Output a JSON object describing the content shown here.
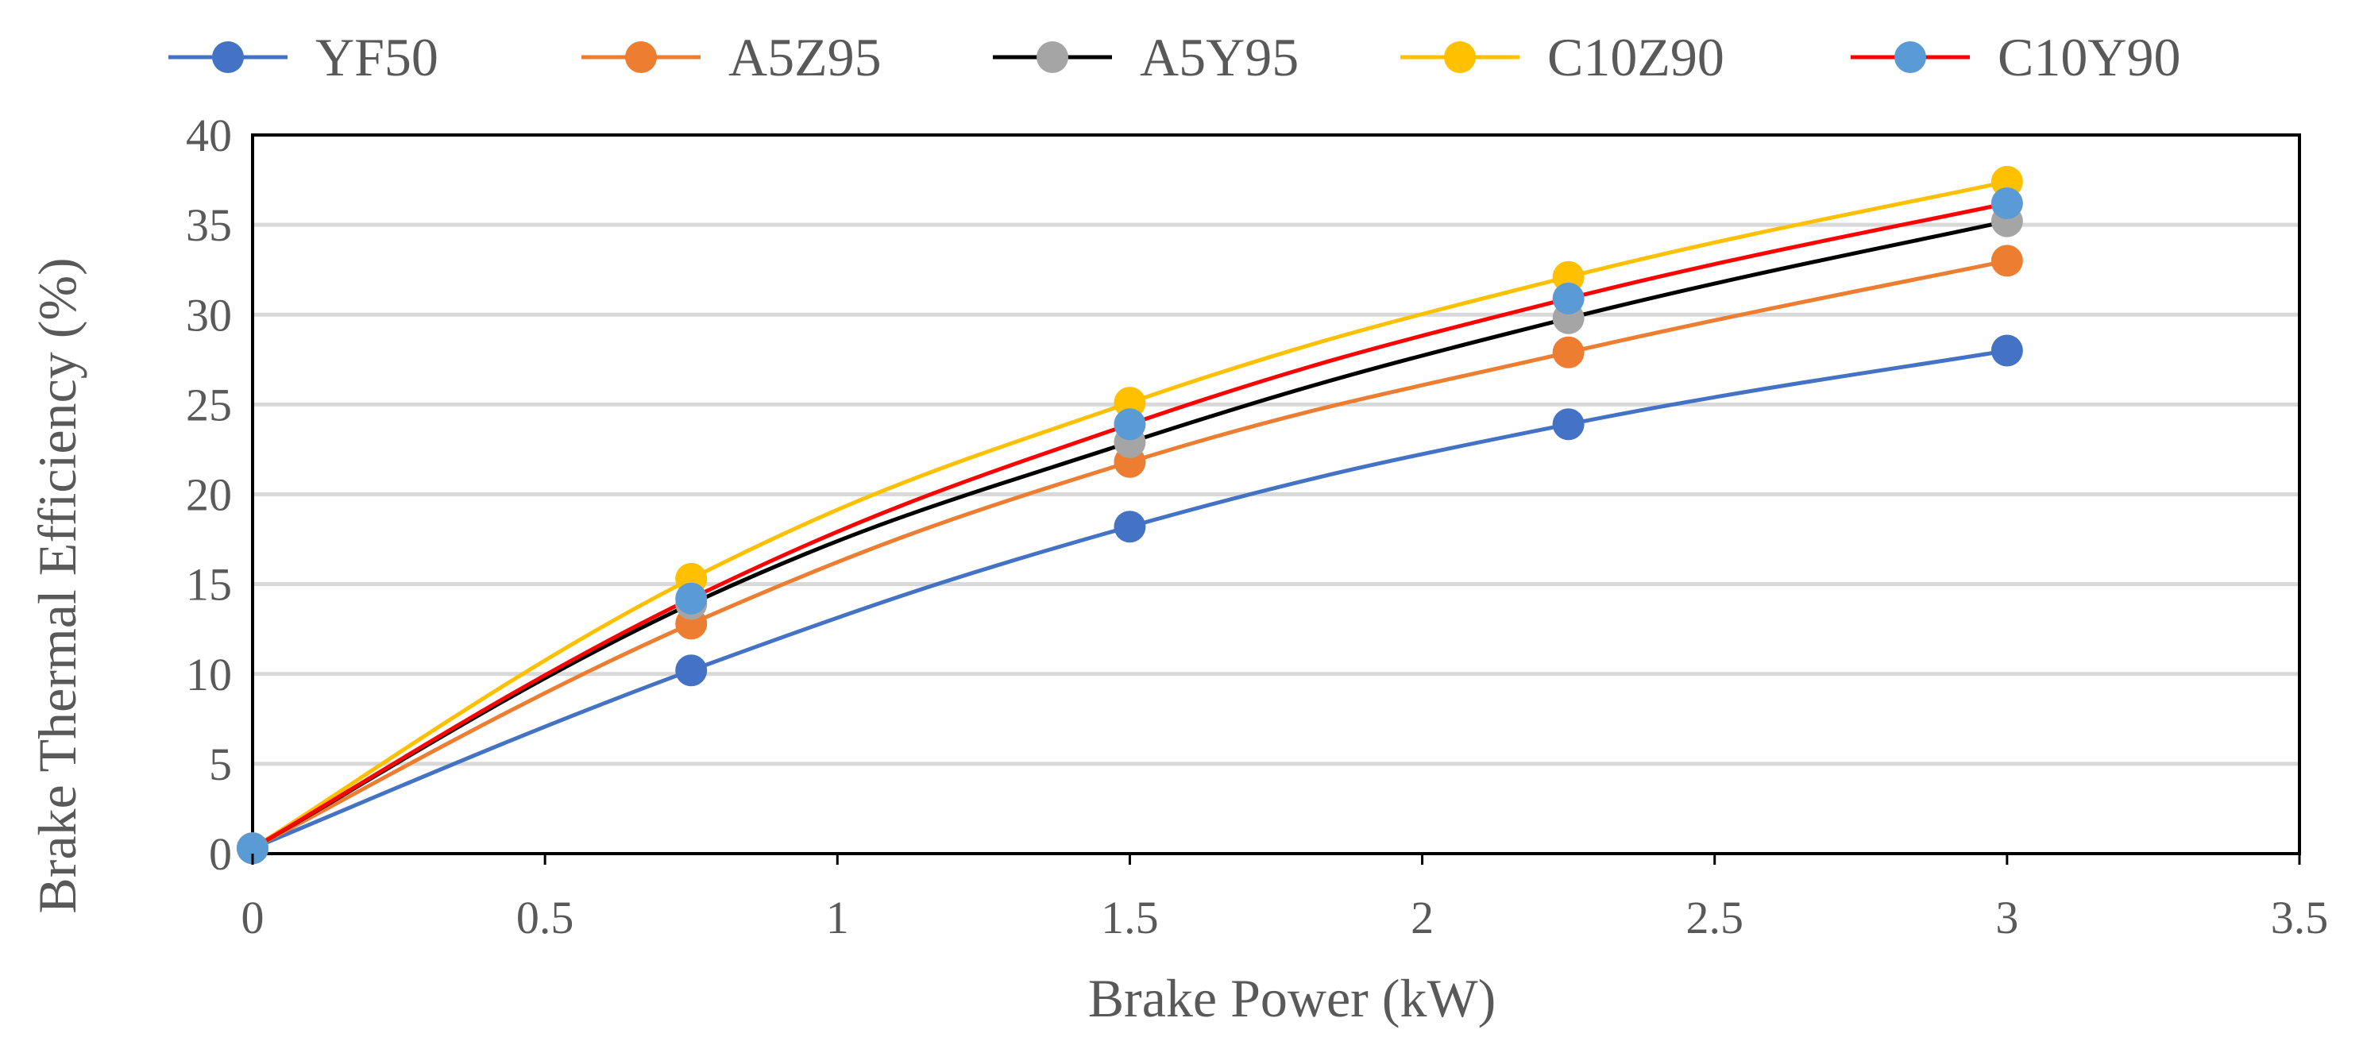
{
  "chart_data": {
    "type": "line",
    "title": "",
    "xlabel": "Brake Power (kW)",
    "ylabel": "Brake Thermal Efficiency  (%)",
    "xlim": [
      0,
      3.5
    ],
    "ylim": [
      0,
      40
    ],
    "x_ticks": [
      0,
      0.5,
      1,
      1.5,
      2,
      2.5,
      3,
      3.5
    ],
    "x_tick_labels": [
      "0",
      "0.5",
      "1",
      "1.5",
      "2",
      "2.5",
      "3",
      "3.5"
    ],
    "y_ticks": [
      0,
      5,
      10,
      15,
      20,
      25,
      30,
      35,
      40
    ],
    "y_tick_labels": [
      "0",
      "5",
      "10",
      "15",
      "20",
      "25",
      "30",
      "35",
      "40"
    ],
    "grid": "horizontal",
    "legend_position": "top",
    "x": [
      0,
      0.75,
      1.5,
      2.25,
      3
    ],
    "series": [
      {
        "name": "YF50",
        "values": [
          0.3,
          10.2,
          18.2,
          23.9,
          28.0
        ],
        "line_color": "#4472C4",
        "marker_color": "#4472C4"
      },
      {
        "name": "A5Z95",
        "values": [
          0.3,
          12.8,
          21.8,
          27.9,
          33.0
        ],
        "line_color": "#ED7D31",
        "marker_color": "#ED7D31"
      },
      {
        "name": "A5Y95",
        "values": [
          0.3,
          13.9,
          22.9,
          29.8,
          35.2
        ],
        "line_color": "#000000",
        "marker_color": "#A5A5A5"
      },
      {
        "name": "C10Z90",
        "values": [
          0.3,
          15.3,
          25.1,
          32.1,
          37.4
        ],
        "line_color": "#FFC000",
        "marker_color": "#FFC000"
      },
      {
        "name": "C10Y90",
        "values": [
          0.3,
          14.2,
          23.9,
          30.9,
          36.2
        ],
        "line_color": "#FF0000",
        "marker_color": "#5B9BD5"
      }
    ]
  }
}
